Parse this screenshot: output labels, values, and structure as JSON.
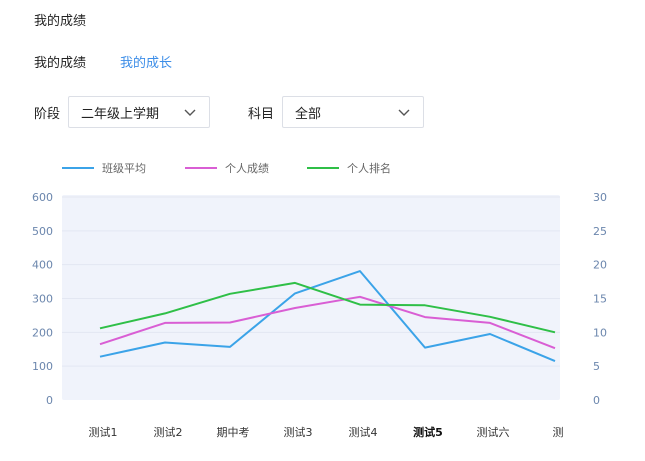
{
  "page": {
    "title": "我的成绩"
  },
  "tabs": [
    {
      "label": "我的成绩",
      "active": false
    },
    {
      "label": "我的成长",
      "active": true
    }
  ],
  "filters": {
    "stage": {
      "label": "阶段",
      "value": "二年级上学期"
    },
    "subject": {
      "label": "科目",
      "value": "全部"
    }
  },
  "colors": {
    "accent": "#3d8ee8",
    "plot_bg": "#f0f3fb"
  },
  "chart_data": {
    "type": "line",
    "categories": [
      "测试1",
      "测试2",
      "期中考",
      "测试3",
      "测试4",
      "测试5",
      "测试六",
      "测"
    ],
    "highlight_category": "测试5",
    "left_axis": {
      "ylim": [
        0,
        600
      ],
      "ticks": [
        0,
        100,
        200,
        300,
        400,
        500,
        600
      ]
    },
    "right_axis": {
      "ylim": [
        0,
        30
      ],
      "ticks": [
        0,
        5,
        10,
        15,
        20,
        25,
        30
      ]
    },
    "legend_position": "top-left",
    "grid": true,
    "series": [
      {
        "name": "班级平均",
        "color": "#3ba3e8",
        "axis": "left",
        "values": [
          128,
          170,
          157,
          315,
          381,
          155,
          195,
          115
        ]
      },
      {
        "name": "个人成绩",
        "color": "#d95ed4",
        "axis": "left",
        "values": [
          165,
          228,
          229,
          272,
          305,
          245,
          228,
          153
        ]
      },
      {
        "name": "个人排名",
        "color": "#2fbf47",
        "axis": "right",
        "values": [
          10.6,
          12.8,
          15.7,
          17.3,
          14.1,
          14.0,
          12.3,
          10.0
        ]
      }
    ]
  }
}
